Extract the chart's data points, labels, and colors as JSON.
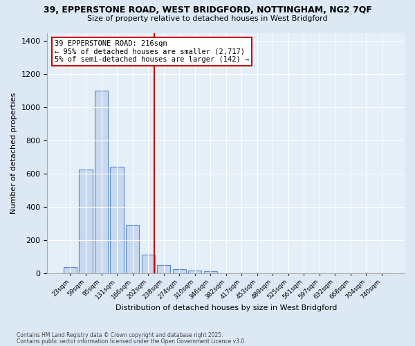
{
  "title1": "39, EPPERSTONE ROAD, WEST BRIDGFORD, NOTTINGHAM, NG2 7QF",
  "title2": "Size of property relative to detached houses in West Bridgford",
  "xlabel": "Distribution of detached houses by size in West Bridgford",
  "ylabel": "Number of detached properties",
  "footnote1": "Contains HM Land Registry data © Crown copyright and database right 2025.",
  "footnote2": "Contains public sector information licensed under the Open Government Licence v3.0.",
  "bin_labels": [
    "23sqm",
    "59sqm",
    "95sqm",
    "131sqm",
    "166sqm",
    "202sqm",
    "238sqm",
    "274sqm",
    "310sqm",
    "346sqm",
    "382sqm",
    "417sqm",
    "453sqm",
    "489sqm",
    "525sqm",
    "561sqm",
    "597sqm",
    "632sqm",
    "668sqm",
    "704sqm",
    "740sqm"
  ],
  "bar_heights": [
    35,
    625,
    1100,
    640,
    290,
    110,
    50,
    25,
    15,
    10,
    0,
    0,
    0,
    0,
    0,
    0,
    0,
    0,
    0,
    0,
    0
  ],
  "bar_color": "#c8d8ee",
  "bar_edge_color": "#5588cc",
  "vline_x_bin": 5,
  "vline_color": "#cc0000",
  "annotation_text": "39 EPPERSTONE ROAD: 216sqm\n← 95% of detached houses are smaller (2,717)\n5% of semi-detached houses are larger (142) →",
  "annotation_box_color": "#cc0000",
  "ylim": [
    0,
    1450
  ],
  "yticks": [
    0,
    200,
    400,
    600,
    800,
    1000,
    1200,
    1400
  ],
  "bg_color": "#dde8f5",
  "plot_bg_color": "#e4eff8",
  "title_fontsize": 9,
  "subtitle_fontsize": 8,
  "xlabel_fontsize": 8,
  "ylabel_fontsize": 8
}
